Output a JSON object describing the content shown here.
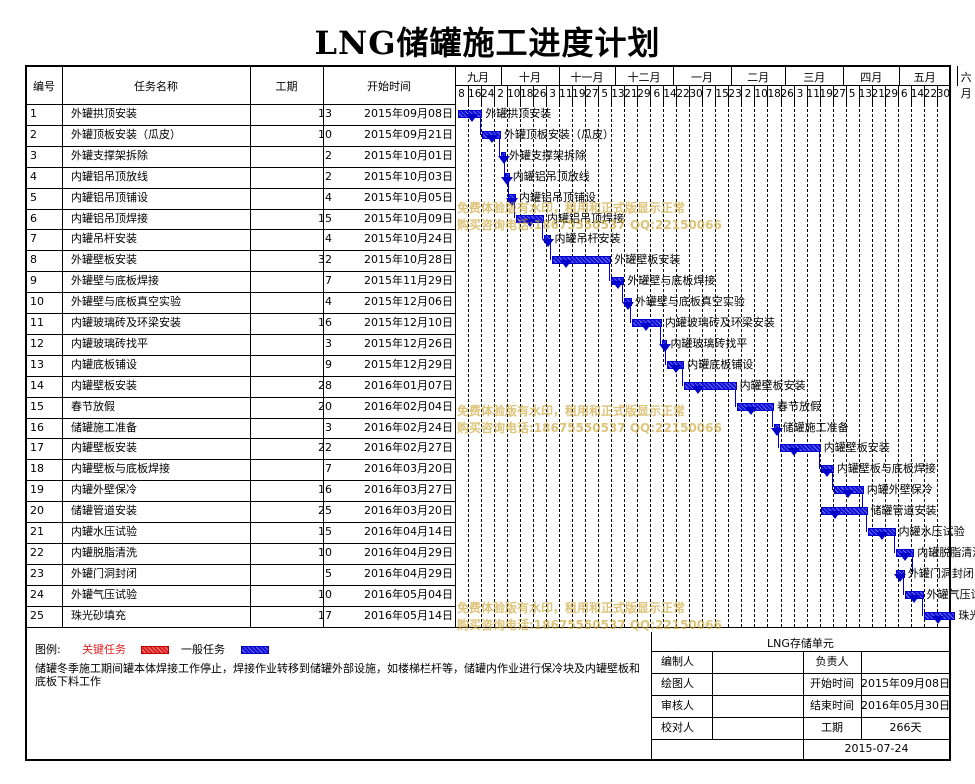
{
  "title": "LNG储罐施工进度计划",
  "header": {
    "col_no": "编号",
    "col_name": "任务名称",
    "col_dur": "工期",
    "col_start": "开始时间"
  },
  "months": [
    "九月",
    "十月",
    "十一月",
    "十二月",
    "一月",
    "二月",
    "三月",
    "四月",
    "五月",
    "六月"
  ],
  "days": [
    "8",
    "16",
    "24",
    "2",
    "10",
    "18",
    "26",
    "3",
    "11",
    "19",
    "27",
    "5",
    "13",
    "21",
    "29",
    "6",
    "14",
    "22",
    "30",
    "7",
    "15",
    "23",
    "2",
    "10",
    "18",
    "26",
    "3",
    "11",
    "19",
    "27",
    "5",
    "13",
    "21",
    "29",
    "6",
    "14",
    "22",
    "30"
  ],
  "tasks": [
    {
      "no": "1",
      "name": "外罐拱顶安装",
      "dur": "13",
      "start": "2015年09月08日",
      "s": "2015-09-08"
    },
    {
      "no": "2",
      "name": "外罐顶板安装（瓜皮）",
      "dur": "10",
      "start": "2015年09月21日",
      "s": "2015-09-21"
    },
    {
      "no": "3",
      "name": "外罐支撑架拆除",
      "dur": "2",
      "start": "2015年10月01日",
      "s": "2015-10-01"
    },
    {
      "no": "4",
      "name": "内罐铝吊顶放线",
      "dur": "2",
      "start": "2015年10月03日",
      "s": "2015-10-03"
    },
    {
      "no": "5",
      "name": "内罐铝吊顶铺设",
      "dur": "4",
      "start": "2015年10月05日",
      "s": "2015-10-05"
    },
    {
      "no": "6",
      "name": "内罐铝吊顶焊接",
      "dur": "15",
      "start": "2015年10月09日",
      "s": "2015-10-09"
    },
    {
      "no": "7",
      "name": "内罐吊杆安装",
      "dur": "4",
      "start": "2015年10月24日",
      "s": "2015-10-24"
    },
    {
      "no": "8",
      "name": "外罐壁板安装",
      "dur": "32",
      "start": "2015年10月28日",
      "s": "2015-10-28"
    },
    {
      "no": "9",
      "name": "外罐壁与底板焊接",
      "dur": "7",
      "start": "2015年11月29日",
      "s": "2015-11-29"
    },
    {
      "no": "10",
      "name": "外罐壁与底板真空实验",
      "dur": "4",
      "start": "2015年12月06日",
      "s": "2015-12-06"
    },
    {
      "no": "11",
      "name": "内罐玻璃砖及环梁安装",
      "dur": "16",
      "start": "2015年12月10日",
      "s": "2015-12-10"
    },
    {
      "no": "12",
      "name": "内罐玻璃砖找平",
      "dur": "3",
      "start": "2015年12月26日",
      "s": "2015-12-26"
    },
    {
      "no": "13",
      "name": "内罐底板铺设",
      "dur": "9",
      "start": "2015年12月29日",
      "s": "2015-12-29"
    },
    {
      "no": "14",
      "name": "内罐壁板安装",
      "dur": "28",
      "start": "2016年01月07日",
      "s": "2016-01-07"
    },
    {
      "no": "15",
      "name": "春节放假",
      "dur": "20",
      "start": "2016年02月04日",
      "s": "2016-02-04"
    },
    {
      "no": "16",
      "name": "储罐施工准备",
      "dur": "3",
      "start": "2016年02月24日",
      "s": "2016-02-24"
    },
    {
      "no": "17",
      "name": "内罐壁板安装",
      "dur": "22",
      "start": "2016年02月27日",
      "s": "2016-02-27"
    },
    {
      "no": "18",
      "name": "内罐壁板与底板焊接",
      "dur": "7",
      "start": "2016年03月20日",
      "s": "2016-03-20"
    },
    {
      "no": "19",
      "name": "内罐外壁保冷",
      "dur": "16",
      "start": "2016年03月27日",
      "s": "2016-03-27"
    },
    {
      "no": "20",
      "name": "储罐管道安装",
      "dur": "25",
      "start": "2016年03月20日",
      "s": "2016-03-20"
    },
    {
      "no": "21",
      "name": "内罐水压试验",
      "dur": "15",
      "start": "2016年04月14日",
      "s": "2016-04-14"
    },
    {
      "no": "22",
      "name": "内罐脱脂清洗",
      "dur": "10",
      "start": "2016年04月29日",
      "s": "2016-04-29"
    },
    {
      "no": "23",
      "name": "外罐门洞封闭",
      "dur": "5",
      "start": "2016年04月29日",
      "s": "2016-04-29"
    },
    {
      "no": "24",
      "name": "外罐气压试验",
      "dur": "10",
      "start": "2016年05月04日",
      "s": "2016-05-04"
    },
    {
      "no": "25",
      "name": "珠光砂填充",
      "dur": "17",
      "start": "2016年05月14日",
      "s": "2016-05-14"
    }
  ],
  "watermarks": [
    {
      "line1": "免费体验版有水印，租用和正式版显示正常",
      "line2": "购买咨询电话:18675550537 QQ:22150066"
    },
    {
      "line1": "免费体验版有水印，租用和正式版显示正常",
      "line2": "购买咨询电话:18675550537 QQ:22150066"
    },
    {
      "line1": "免费体验版有水印，租用和正式版显示正常",
      "line2": "购买咨询电话:18675550537 QQ:22150066"
    }
  ],
  "legend": {
    "label": "图例:",
    "critical": "关键任务",
    "normal": "一般任务",
    "critical_color": "#e02020",
    "normal_color": "#1a1ad8"
  },
  "note": "储罐冬季施工期间罐本体焊接工作停止，焊接作业转移到储罐外部设施，如楼梯栏杆等，储罐内作业进行保冷块及内罐壁板和底板下料工作",
  "infobox": {
    "unit": "LNG存储单元",
    "editor_label": "编制人",
    "editor": "",
    "owner_label": "负责人",
    "owner": "",
    "drawer_label": "绘图人",
    "drawer": "",
    "start_label": "开始时间",
    "start": "2015年09月08日",
    "reviewer_label": "审核人",
    "reviewer": "",
    "end_label": "结束时间",
    "end": "2016年05月30日",
    "checker_label": "校对人",
    "checker": "",
    "dur_label": "工期",
    "dur": "266天",
    "date": "2015-07-24"
  },
  "colors": {
    "bar": "#1a1ad8",
    "link": "#0000c8"
  }
}
